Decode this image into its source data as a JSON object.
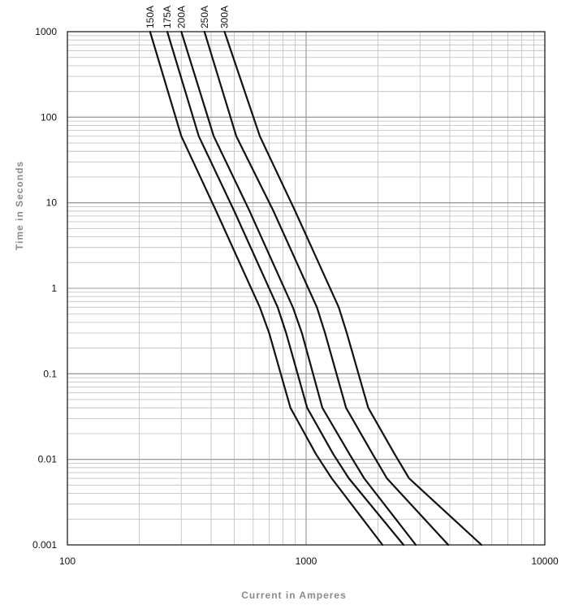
{
  "chart_data": {
    "type": "line",
    "title": "",
    "xlabel": "Current in Amperes",
    "ylabel": "Time in Seconds",
    "xscale": "log",
    "yscale": "log",
    "xlim": [
      100,
      10000
    ],
    "ylim": [
      0.001,
      1000
    ],
    "grid": true,
    "x_tick_labels": [
      "100",
      "1000",
      "10000"
    ],
    "y_tick_labels": [
      "0.001",
      "0.01",
      "0.1",
      "1",
      "10",
      "100",
      "1000"
    ],
    "line_color": "#111111",
    "series": [
      {
        "name": "150A",
        "points": [
          [
            222,
            1000
          ],
          [
            300,
            60
          ],
          [
            420,
            8
          ],
          [
            640,
            0.6
          ],
          [
            700,
            0.3
          ],
          [
            860,
            0.04
          ],
          [
            1100,
            0.0115
          ],
          [
            1280,
            0.006
          ],
          [
            2090,
            0.001
          ]
        ]
      },
      {
        "name": "175A",
        "points": [
          [
            262,
            1000
          ],
          [
            355,
            60
          ],
          [
            500,
            8
          ],
          [
            760,
            0.6
          ],
          [
            825,
            0.3
          ],
          [
            1010,
            0.04
          ],
          [
            1300,
            0.0115
          ],
          [
            1510,
            0.006
          ],
          [
            2560,
            0.001
          ]
        ]
      },
      {
        "name": "200A",
        "points": [
          [
            300,
            1000
          ],
          [
            410,
            60
          ],
          [
            580,
            8
          ],
          [
            880,
            0.6
          ],
          [
            960,
            0.3
          ],
          [
            1170,
            0.04
          ],
          [
            1520,
            0.0115
          ],
          [
            1750,
            0.006
          ],
          [
            2880,
            0.001
          ]
        ]
      },
      {
        "name": "250A",
        "points": [
          [
            375,
            1000
          ],
          [
            510,
            60
          ],
          [
            730,
            8
          ],
          [
            1110,
            0.6
          ],
          [
            1200,
            0.3
          ],
          [
            1470,
            0.04
          ],
          [
            1900,
            0.0115
          ],
          [
            2180,
            0.006
          ],
          [
            3940,
            0.001
          ]
        ]
      },
      {
        "name": "300A",
        "points": [
          [
            455,
            1000
          ],
          [
            640,
            60
          ],
          [
            900,
            8
          ],
          [
            1370,
            0.6
          ],
          [
            1480,
            0.3
          ],
          [
            1820,
            0.04
          ],
          [
            2350,
            0.0115
          ],
          [
            2700,
            0.006
          ],
          [
            5430,
            0.001
          ]
        ]
      }
    ]
  }
}
